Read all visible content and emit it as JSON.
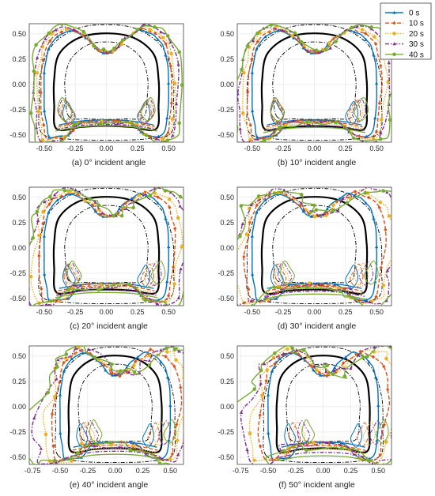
{
  "chart_data": {
    "type": "line",
    "panel_titles": [
      "(a) 0° incident angle",
      "(b) 10° incident angle",
      "(c) 20° incident angle",
      "(d) 30° incident angle",
      "(e) 40° incident angle",
      "(f) 50° incident angle"
    ],
    "incident_angles_deg": [
      0,
      10,
      20,
      30,
      40,
      50
    ],
    "legend": {
      "placement": "top-right",
      "entries": [
        "0 s",
        "10 s",
        "20 s",
        "30 s",
        "40 s"
      ]
    },
    "series_styles": [
      {
        "name": "0 s",
        "color": "#0072BD",
        "dash": "solid",
        "marker": "triangle"
      },
      {
        "name": "10 s",
        "color": "#D95319",
        "dash": "dashed",
        "marker": "diamond"
      },
      {
        "name": "20 s",
        "color": "#EDB120",
        "dash": "dotted",
        "marker": "circle"
      },
      {
        "name": "30 s",
        "color": "#7E2F8E",
        "dash": "dashdot",
        "marker": "triangle"
      },
      {
        "name": "40 s",
        "color": "#77AC30",
        "dash": "solid",
        "marker": "circle"
      }
    ],
    "reference_styles": {
      "design_profile_color": "#000000",
      "limit_envelope_color": "#000000"
    },
    "grid": true,
    "axes": {
      "xticks_rows_1_2": [
        "-0.50",
        "-0.25",
        "0.00",
        "0.25",
        "0.50"
      ],
      "xticks_row_3": [
        "-0.75",
        "-0.50",
        "-0.25",
        "0.00",
        "0.25",
        "0.50"
      ],
      "yticks": [
        "0.50",
        "0.25",
        "0.00",
        "-0.25",
        "-0.50"
      ],
      "xlim_rows_1_2": [
        -0.62,
        0.62
      ],
      "xlim_row_3": [
        -0.78,
        0.62
      ],
      "ylim": [
        -0.57,
        0.6
      ]
    },
    "profiles": {
      "design": [
        [
          -0.4,
          -0.44
        ],
        [
          -0.42,
          -0.2
        ],
        [
          -0.42,
          0.05
        ],
        [
          -0.38,
          0.3
        ],
        [
          -0.22,
          0.46
        ],
        [
          0,
          0.505
        ],
        [
          0.22,
          0.46
        ],
        [
          0.38,
          0.3
        ],
        [
          0.42,
          0.05
        ],
        [
          0.42,
          -0.2
        ],
        [
          0.4,
          -0.44
        ],
        [
          0.2,
          -0.42
        ],
        [
          0,
          -0.41
        ],
        [
          -0.2,
          -0.42
        ]
      ],
      "outer_limit": [
        -0.52,
        -0.48,
        -0.54,
        -0.2,
        -0.53,
        0.1,
        -0.44,
        0.38,
        -0.24,
        0.55,
        0,
        0.59,
        0.24,
        0.55,
        0.44,
        0.38,
        0.53,
        0.1,
        0.54,
        -0.2,
        0.52,
        -0.48,
        0.3,
        -0.54,
        0,
        -0.55,
        -0.3,
        -0.54
      ],
      "inner_limit": [
        -0.3,
        -0.32,
        -0.33,
        -0.1,
        -0.33,
        0.08,
        -0.28,
        0.26,
        -0.15,
        0.39,
        0,
        0.42,
        0.15,
        0.39,
        0.28,
        0.26,
        0.33,
        0.08,
        0.33,
        -0.1,
        0.3,
        -0.32,
        0.15,
        -0.34,
        0,
        -0.345,
        -0.15,
        -0.34
      ]
    },
    "base_contour": [
      [
        -0.46,
        -0.52
      ],
      [
        -0.5,
        -0.25
      ],
      [
        -0.5,
        0.15
      ],
      [
        -0.46,
        0.38
      ],
      [
        -0.38,
        0.49
      ],
      [
        -0.27,
        0.54
      ],
      [
        -0.13,
        0.43
      ],
      [
        -0.07,
        0.33
      ],
      [
        0,
        0.3
      ],
      [
        0.07,
        0.33
      ],
      [
        0.13,
        0.43
      ],
      [
        0.27,
        0.54
      ],
      [
        0.38,
        0.49
      ],
      [
        0.46,
        0.38
      ],
      [
        0.5,
        0.15
      ],
      [
        0.5,
        -0.25
      ],
      [
        0.46,
        -0.52
      ],
      [
        0.3,
        -0.5
      ],
      [
        0.2,
        -0.36
      ],
      [
        0,
        -0.35
      ],
      [
        -0.2,
        -0.36
      ],
      [
        -0.3,
        -0.5
      ]
    ],
    "floor_curve": [
      [
        -0.38,
        -0.4
      ],
      [
        -0.2,
        -0.36
      ],
      [
        0,
        -0.35
      ],
      [
        0.2,
        -0.36
      ],
      [
        0.38,
        -0.4
      ]
    ],
    "inner_blobs": [
      [
        [
          -0.35,
          -0.3
        ],
        [
          -0.32,
          -0.17
        ],
        [
          -0.28,
          -0.24
        ],
        [
          -0.25,
          -0.32
        ],
        [
          -0.3,
          -0.4
        ]
      ],
      [
        [
          0.35,
          -0.3
        ],
        [
          0.32,
          -0.17
        ],
        [
          0.28,
          -0.24
        ],
        [
          0.25,
          -0.32
        ],
        [
          0.3,
          -0.4
        ]
      ]
    ]
  }
}
